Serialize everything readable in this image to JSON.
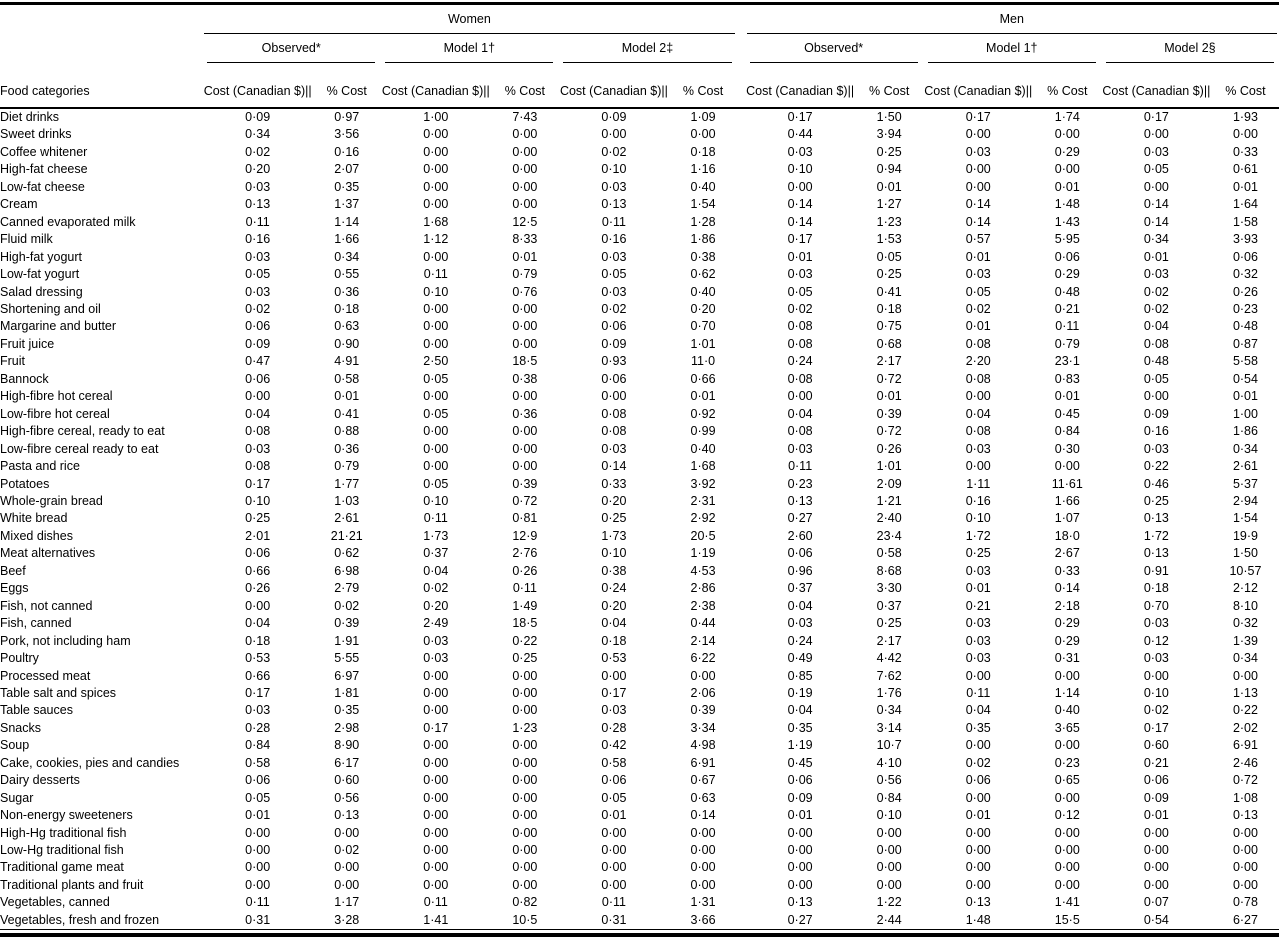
{
  "table": {
    "row_header_label": "Food categories",
    "groups": [
      {
        "sex": "Women",
        "models": [
          "Observed*",
          "Model 1†",
          "Model 2‡"
        ]
      },
      {
        "sex": "Men",
        "models": [
          "Observed*",
          "Model 1†",
          "Model 2§"
        ]
      }
    ],
    "sub_headers": {
      "cost": "Cost (Canadian $)||",
      "pct": "% Cost"
    },
    "rows": [
      {
        "category": "Diet drinks",
        "values": [
          "0·09",
          "0·97",
          "1·00",
          "7·43",
          "0·09",
          "1·09",
          "0·17",
          "1·50",
          "0·17",
          "1·74",
          "0·17",
          "1·93"
        ]
      },
      {
        "category": "Sweet drinks",
        "values": [
          "0·34",
          "3·56",
          "0·00",
          "0·00",
          "0·00",
          "0·00",
          "0·44",
          "3·94",
          "0·00",
          "0·00",
          "0·00",
          "0·00"
        ]
      },
      {
        "category": "Coffee whitener",
        "values": [
          "0·02",
          "0·16",
          "0·00",
          "0·00",
          "0·02",
          "0·18",
          "0·03",
          "0·25",
          "0·03",
          "0·29",
          "0·03",
          "0·33"
        ]
      },
      {
        "category": "High-fat cheese",
        "values": [
          "0·20",
          "2·07",
          "0·00",
          "0·00",
          "0·10",
          "1·16",
          "0·10",
          "0·94",
          "0·00",
          "0·00",
          "0·05",
          "0·61"
        ]
      },
      {
        "category": "Low-fat cheese",
        "values": [
          "0·03",
          "0·35",
          "0·00",
          "0·00",
          "0·03",
          "0·40",
          "0·00",
          "0·01",
          "0·00",
          "0·01",
          "0·00",
          "0·01"
        ]
      },
      {
        "category": "Cream",
        "values": [
          "0·13",
          "1·37",
          "0·00",
          "0·00",
          "0·13",
          "1·54",
          "0·14",
          "1·27",
          "0·14",
          "1·48",
          "0·14",
          "1·64"
        ]
      },
      {
        "category": "Canned evaporated milk",
        "values": [
          "0·11",
          "1·14",
          "1·68",
          "12·5",
          "0·11",
          "1·28",
          "0·14",
          "1·23",
          "0·14",
          "1·43",
          "0·14",
          "1·58"
        ]
      },
      {
        "category": "Fluid milk",
        "values": [
          "0·16",
          "1·66",
          "1·12",
          "8·33",
          "0·16",
          "1·86",
          "0·17",
          "1·53",
          "0·57",
          "5·95",
          "0·34",
          "3·93"
        ]
      },
      {
        "category": "High-fat yogurt",
        "values": [
          "0·03",
          "0·34",
          "0·00",
          "0·01",
          "0·03",
          "0·38",
          "0·01",
          "0·05",
          "0·01",
          "0·06",
          "0·01",
          "0·06"
        ]
      },
      {
        "category": "Low-fat yogurt",
        "values": [
          "0·05",
          "0·55",
          "0·11",
          "0·79",
          "0·05",
          "0·62",
          "0·03",
          "0·25",
          "0·03",
          "0·29",
          "0·03",
          "0·32"
        ]
      },
      {
        "category": "Salad dressing",
        "values": [
          "0·03",
          "0·36",
          "0·10",
          "0·76",
          "0·03",
          "0·40",
          "0·05",
          "0·41",
          "0·05",
          "0·48",
          "0·02",
          "0·26"
        ]
      },
      {
        "category": "Shortening and oil",
        "values": [
          "0·02",
          "0·18",
          "0·00",
          "0·00",
          "0·02",
          "0·20",
          "0·02",
          "0·18",
          "0·02",
          "0·21",
          "0·02",
          "0·23"
        ]
      },
      {
        "category": "Margarine and butter",
        "values": [
          "0·06",
          "0·63",
          "0·00",
          "0·00",
          "0·06",
          "0·70",
          "0·08",
          "0·75",
          "0·01",
          "0·11",
          "0·04",
          "0·48"
        ]
      },
      {
        "category": "Fruit juice",
        "values": [
          "0·09",
          "0·90",
          "0·00",
          "0·00",
          "0·09",
          "1·01",
          "0·08",
          "0·68",
          "0·08",
          "0·79",
          "0·08",
          "0·87"
        ]
      },
      {
        "category": "Fruit",
        "values": [
          "0·47",
          "4·91",
          "2·50",
          "18·5",
          "0·93",
          "11·0",
          "0·24",
          "2·17",
          "2·20",
          "23·1",
          "0·48",
          "5·58"
        ]
      },
      {
        "category": "Bannock",
        "values": [
          "0·06",
          "0·58",
          "0·05",
          "0·38",
          "0·06",
          "0·66",
          "0·08",
          "0·72",
          "0·08",
          "0·83",
          "0·05",
          "0·54"
        ]
      },
      {
        "category": "High-fibre hot cereal",
        "values": [
          "0·00",
          "0·01",
          "0·00",
          "0·00",
          "0·00",
          "0·01",
          "0·00",
          "0·01",
          "0·00",
          "0·01",
          "0·00",
          "0·01"
        ]
      },
      {
        "category": "Low-fibre hot cereal",
        "values": [
          "0·04",
          "0·41",
          "0·05",
          "0·36",
          "0·08",
          "0·92",
          "0·04",
          "0·39",
          "0·04",
          "0·45",
          "0·09",
          "1·00"
        ]
      },
      {
        "category": "High-fibre cereal, ready to eat",
        "values": [
          "0·08",
          "0·88",
          "0·00",
          "0·00",
          "0·08",
          "0·99",
          "0·08",
          "0·72",
          "0·08",
          "0·84",
          "0·16",
          "1·86"
        ]
      },
      {
        "category": "Low-fibre cereal ready to eat",
        "values": [
          "0·03",
          "0·36",
          "0·00",
          "0·00",
          "0·03",
          "0·40",
          "0·03",
          "0·26",
          "0·03",
          "0·30",
          "0·03",
          "0·34"
        ]
      },
      {
        "category": "Pasta and rice",
        "values": [
          "0·08",
          "0·79",
          "0·00",
          "0·00",
          "0·14",
          "1·68",
          "0·11",
          "1·01",
          "0·00",
          "0·00",
          "0·22",
          "2·61"
        ]
      },
      {
        "category": "Potatoes",
        "values": [
          "0·17",
          "1·77",
          "0·05",
          "0·39",
          "0·33",
          "3·92",
          "0·23",
          "2·09",
          "1·11",
          "11·61",
          "0·46",
          "5·37"
        ]
      },
      {
        "category": "Whole-grain bread",
        "values": [
          "0·10",
          "1·03",
          "0·10",
          "0·72",
          "0·20",
          "2·31",
          "0·13",
          "1·21",
          "0·16",
          "1·66",
          "0·25",
          "2·94"
        ]
      },
      {
        "category": "White bread",
        "values": [
          "0·25",
          "2·61",
          "0·11",
          "0·81",
          "0·25",
          "2·92",
          "0·27",
          "2·40",
          "0·10",
          "1·07",
          "0·13",
          "1·54"
        ]
      },
      {
        "category": "Mixed dishes",
        "values": [
          "2·01",
          "21·21",
          "1·73",
          "12·9",
          "1·73",
          "20·5",
          "2·60",
          "23·4",
          "1·72",
          "18·0",
          "1·72",
          "19·9"
        ]
      },
      {
        "category": "Meat alternatives",
        "values": [
          "0·06",
          "0·62",
          "0·37",
          "2·76",
          "0·10",
          "1·19",
          "0·06",
          "0·58",
          "0·25",
          "2·67",
          "0·13",
          "1·50"
        ]
      },
      {
        "category": "Beef",
        "values": [
          "0·66",
          "6·98",
          "0·04",
          "0·26",
          "0·38",
          "4·53",
          "0·96",
          "8·68",
          "0·03",
          "0·33",
          "0·91",
          "10·57"
        ]
      },
      {
        "category": "Eggs",
        "values": [
          "0·26",
          "2·79",
          "0·02",
          "0·11",
          "0·24",
          "2·86",
          "0·37",
          "3·30",
          "0·01",
          "0·14",
          "0·18",
          "2·12"
        ]
      },
      {
        "category": "Fish, not canned",
        "values": [
          "0·00",
          "0·02",
          "0·20",
          "1·49",
          "0·20",
          "2·38",
          "0·04",
          "0·37",
          "0·21",
          "2·18",
          "0·70",
          "8·10"
        ]
      },
      {
        "category": "Fish, canned",
        "values": [
          "0·04",
          "0·39",
          "2·49",
          "18·5",
          "0·04",
          "0·44",
          "0·03",
          "0·25",
          "0·03",
          "0·29",
          "0·03",
          "0·32"
        ]
      },
      {
        "category": "Pork, not including ham",
        "values": [
          "0·18",
          "1·91",
          "0·03",
          "0·22",
          "0·18",
          "2·14",
          "0·24",
          "2·17",
          "0·03",
          "0·29",
          "0·12",
          "1·39"
        ]
      },
      {
        "category": "Poultry",
        "values": [
          "0·53",
          "5·55",
          "0·03",
          "0·25",
          "0·53",
          "6·22",
          "0·49",
          "4·42",
          "0·03",
          "0·31",
          "0·03",
          "0·34"
        ]
      },
      {
        "category": "Processed meat",
        "values": [
          "0·66",
          "6·97",
          "0·00",
          "0·00",
          "0·00",
          "0·00",
          "0·85",
          "7·62",
          "0·00",
          "0·00",
          "0·00",
          "0·00"
        ]
      },
      {
        "category": "Table salt and spices",
        "values": [
          "0·17",
          "1·81",
          "0·00",
          "0·00",
          "0·17",
          "2·06",
          "0·19",
          "1·76",
          "0·11",
          "1·14",
          "0·10",
          "1·13"
        ]
      },
      {
        "category": "Table sauces",
        "values": [
          "0·03",
          "0·35",
          "0·00",
          "0·00",
          "0·03",
          "0·39",
          "0·04",
          "0·34",
          "0·04",
          "0·40",
          "0·02",
          "0·22"
        ]
      },
      {
        "category": "Snacks",
        "values": [
          "0·28",
          "2·98",
          "0·17",
          "1·23",
          "0·28",
          "3·34",
          "0·35",
          "3·14",
          "0·35",
          "3·65",
          "0·17",
          "2·02"
        ]
      },
      {
        "category": "Soup",
        "values": [
          "0·84",
          "8·90",
          "0·00",
          "0·00",
          "0·42",
          "4·98",
          "1·19",
          "10·7",
          "0·00",
          "0·00",
          "0·60",
          "6·91"
        ]
      },
      {
        "category": "Cake, cookies, pies and candies",
        "values": [
          "0·58",
          "6·17",
          "0·00",
          "0·00",
          "0·58",
          "6·91",
          "0·45",
          "4·10",
          "0·02",
          "0·23",
          "0·21",
          "2·46"
        ]
      },
      {
        "category": "Dairy desserts",
        "values": [
          "0·06",
          "0·60",
          "0·00",
          "0·00",
          "0·06",
          "0·67",
          "0·06",
          "0·56",
          "0·06",
          "0·65",
          "0·06",
          "0·72"
        ]
      },
      {
        "category": "Sugar",
        "values": [
          "0·05",
          "0·56",
          "0·00",
          "0·00",
          "0·05",
          "0·63",
          "0·09",
          "0·84",
          "0·00",
          "0·00",
          "0·09",
          "1·08"
        ]
      },
      {
        "category": "Non-energy sweeteners",
        "values": [
          "0·01",
          "0·13",
          "0·00",
          "0·00",
          "0·01",
          "0·14",
          "0·01",
          "0·10",
          "0·01",
          "0·12",
          "0·01",
          "0·13"
        ]
      },
      {
        "category": "High-Hg traditional fish",
        "values": [
          "0·00",
          "0·00",
          "0·00",
          "0·00",
          "0·00",
          "0·00",
          "0·00",
          "0·00",
          "0·00",
          "0·00",
          "0·00",
          "0·00"
        ]
      },
      {
        "category": "Low-Hg traditional fish",
        "values": [
          "0·00",
          "0·02",
          "0·00",
          "0·00",
          "0·00",
          "0·00",
          "0·00",
          "0·00",
          "0·00",
          "0·00",
          "0·00",
          "0·00"
        ]
      },
      {
        "category": "Traditional game meat",
        "values": [
          "0·00",
          "0·00",
          "0·00",
          "0·00",
          "0·00",
          "0·00",
          "0·00",
          "0·00",
          "0·00",
          "0·00",
          "0·00",
          "0·00"
        ]
      },
      {
        "category": "Traditional plants and fruit",
        "values": [
          "0·00",
          "0·00",
          "0·00",
          "0·00",
          "0·00",
          "0·00",
          "0·00",
          "0·00",
          "0·00",
          "0·00",
          "0·00",
          "0·00"
        ]
      },
      {
        "category": "Vegetables, canned",
        "values": [
          "0·11",
          "1·17",
          "0·11",
          "0·82",
          "0·11",
          "1·31",
          "0·13",
          "1·22",
          "0·13",
          "1·41",
          "0·07",
          "0·78"
        ]
      },
      {
        "category": "Vegetables, fresh and frozen",
        "values": [
          "0·31",
          "3·28",
          "1·41",
          "10·5",
          "0·31",
          "3·66",
          "0·27",
          "2·44",
          "1·48",
          "15·5",
          "0·54",
          "6·27"
        ]
      }
    ]
  }
}
